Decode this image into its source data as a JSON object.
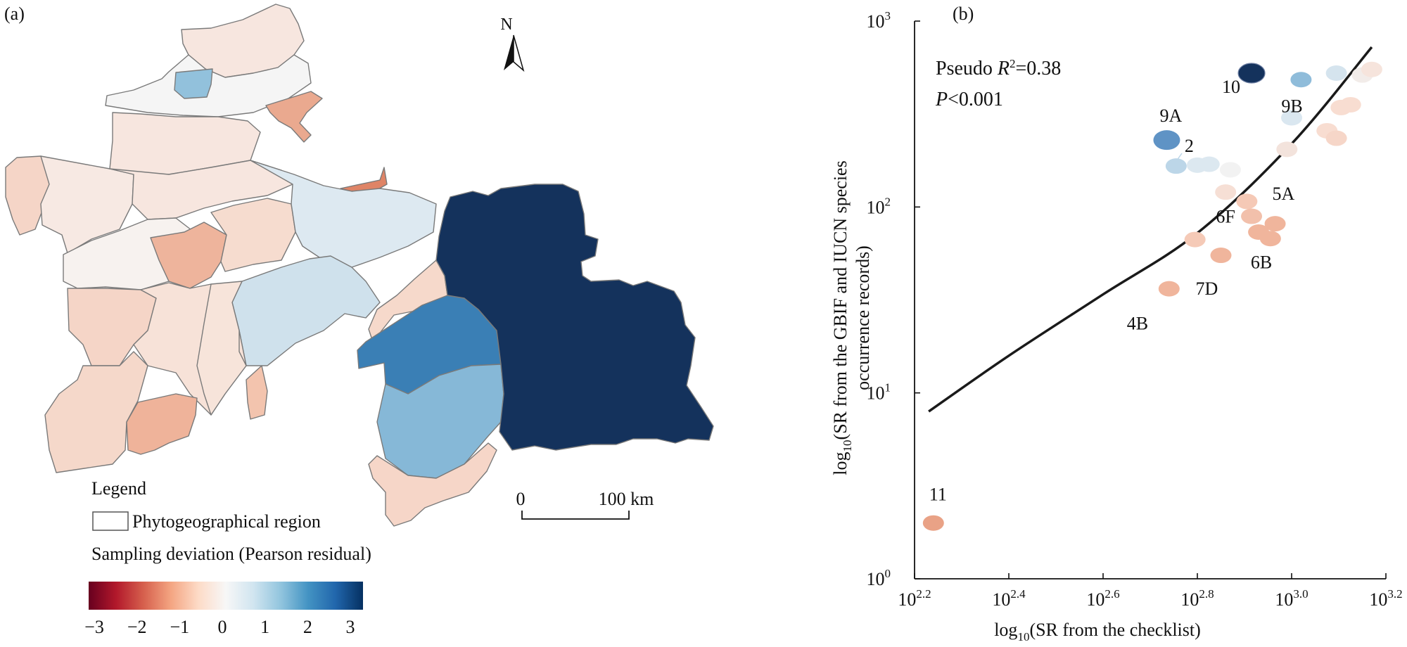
{
  "panel_a": {
    "label": "(a)",
    "north": "N",
    "legend": {
      "title": "Legend",
      "region_label": "Phytogeographical region",
      "deviation_label": "Sampling deviation (Pearson residual)",
      "colorbar_ticks": [
        "−3",
        "−2",
        "−1",
        "0",
        "1",
        "2",
        "3"
      ],
      "colorbar_colors": [
        "#67001f",
        "#b2182b",
        "#d6604d",
        "#f4a582",
        "#fddbc7",
        "#f7f7f7",
        "#d1e5f0",
        "#92c5de",
        "#4393c3",
        "#2166ac",
        "#053061"
      ]
    },
    "scale": {
      "start": "0",
      "end": "100 km"
    },
    "colors": {
      "dark_navy": "#14325c",
      "mid_blue": "#3a7fb5",
      "light_blue": "#86b8d7",
      "pale_blue": "#d5e4ee",
      "very_pale_blue": "#e4eef4",
      "pale_pink": "#f7e6df",
      "light_pink": "#f6d6c8",
      "salmon": "#eeb49c",
      "orange_red": "#df8466",
      "near_white": "#f5f5f5",
      "border": "#7a7a7a"
    }
  },
  "chart_data": {
    "type": "scatter",
    "panel_label": "(b)",
    "xlabel": "log10(SR from the checklist)",
    "ylabel_line1": "log10(SR from the GBIF and IUCN species",
    "ylabel_line2": "occurrence records)",
    "x_axis": {
      "scale": "log10",
      "range": [
        2.2,
        3.2
      ],
      "ticks": [
        2.2,
        2.4,
        2.6,
        2.8,
        3.0,
        3.2
      ],
      "tick_labels": [
        "10^2.2",
        "10^2.4",
        "10^2.6",
        "10^2.8",
        "10^3.0",
        "10^3.2"
      ]
    },
    "y_axis": {
      "scale": "log10",
      "range": [
        0,
        3
      ],
      "ticks": [
        0,
        1,
        2,
        3
      ],
      "tick_labels": [
        "10^0",
        "10^1",
        "10^2",
        "10^3"
      ]
    },
    "annotation": {
      "line1": "Pseudo R2=0.38",
      "r2_value": "0.38",
      "p_text": "P<0.001"
    },
    "fit_curve": {
      "x": [
        2.23,
        2.4,
        2.6,
        2.8,
        3.0,
        3.17
      ],
      "y": [
        0.9,
        1.2,
        1.53,
        1.86,
        2.34,
        2.86
      ]
    },
    "points": [
      {
        "label": "10",
        "x": 2.915,
        "y": 2.72,
        "residual": 3.3,
        "color": "#14325c"
      },
      {
        "label": "9B",
        "x": 3.02,
        "y": 2.685,
        "residual": 1.5,
        "color": "#8fbcda"
      },
      {
        "label": "9A",
        "x": 2.735,
        "y": 2.36,
        "residual": 2.0,
        "color": "#5f93c5"
      },
      {
        "label": "2",
        "x": 2.755,
        "y": 2.22,
        "residual": 1.0,
        "color": "#bcd6e8"
      },
      {
        "label": "",
        "x": 3.095,
        "y": 2.72,
        "residual": 0.8,
        "color": "#d5e4ee"
      },
      {
        "label": "",
        "x": 3.0,
        "y": 2.48,
        "residual": 0.7,
        "color": "#dae7f0"
      },
      {
        "label": "",
        "x": 2.825,
        "y": 2.23,
        "residual": 0.6,
        "color": "#dce8f0"
      },
      {
        "label": "",
        "x": 2.8,
        "y": 2.225,
        "residual": 0.6,
        "color": "#dce8f0"
      },
      {
        "label": "",
        "x": 2.87,
        "y": 2.2,
        "residual": 0.1,
        "color": "#f2f2f2"
      },
      {
        "label": "",
        "x": 3.15,
        "y": 2.71,
        "residual": -0.2,
        "color": "#f2ece9"
      },
      {
        "label": "",
        "x": 3.17,
        "y": 2.74,
        "residual": -0.3,
        "color": "#f6e4dc"
      },
      {
        "label": "",
        "x": 3.125,
        "y": 2.55,
        "residual": -0.5,
        "color": "#f8ddd1"
      },
      {
        "label": "",
        "x": 3.105,
        "y": 2.535,
        "residual": -0.5,
        "color": "#f8ddd1"
      },
      {
        "label": "",
        "x": 3.075,
        "y": 2.41,
        "residual": -0.5,
        "color": "#f8ddd1"
      },
      {
        "label": "",
        "x": 3.095,
        "y": 2.37,
        "residual": -0.5,
        "color": "#f6d6c8"
      },
      {
        "label": "",
        "x": 2.99,
        "y": 2.31,
        "residual": -0.3,
        "color": "#f3e3dc"
      },
      {
        "label": "",
        "x": 2.86,
        "y": 2.08,
        "residual": -0.4,
        "color": "#f6dfd5"
      },
      {
        "label": "6F",
        "x": 2.905,
        "y": 2.03,
        "residual": -0.6,
        "color": "#f5c9b6"
      },
      {
        "label": "",
        "x": 2.915,
        "y": 1.95,
        "residual": -0.7,
        "color": "#f2c0ab"
      },
      {
        "label": "5A",
        "x": 2.965,
        "y": 1.91,
        "residual": -0.8,
        "color": "#f0b59c"
      },
      {
        "label": "",
        "x": 2.93,
        "y": 1.865,
        "residual": -0.8,
        "color": "#f0b59c"
      },
      {
        "label": "6B",
        "x": 2.955,
        "y": 1.83,
        "residual": -0.8,
        "color": "#f0b59c"
      },
      {
        "label": "",
        "x": 2.795,
        "y": 1.825,
        "residual": -0.6,
        "color": "#f5cab7"
      },
      {
        "label": "7D",
        "x": 2.85,
        "y": 1.74,
        "residual": -0.8,
        "color": "#f0b59c"
      },
      {
        "label": "4B",
        "x": 2.74,
        "y": 1.56,
        "residual": -0.8,
        "color": "#f0b59c"
      },
      {
        "label": "11",
        "x": 2.24,
        "y": 0.3,
        "residual": -1.2,
        "color": "#e9a286"
      }
    ]
  }
}
